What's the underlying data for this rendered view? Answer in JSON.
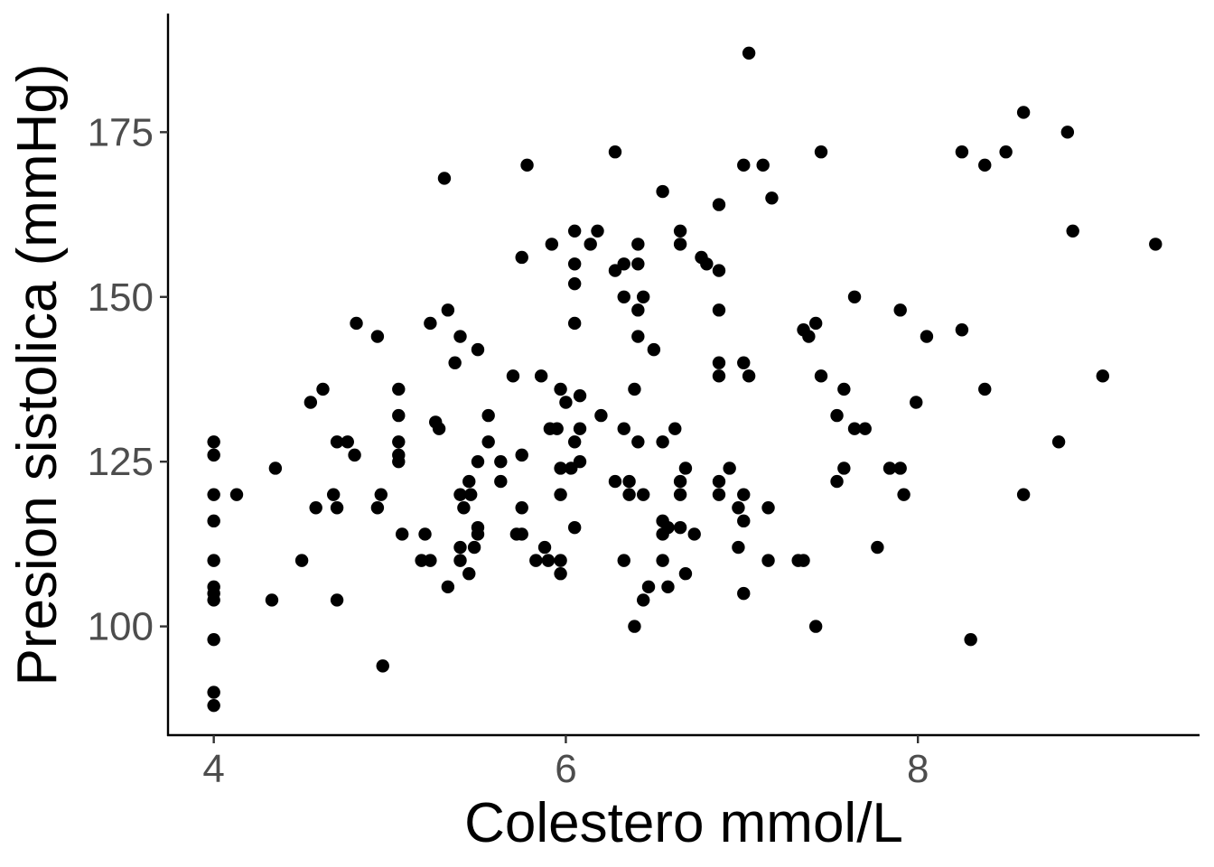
{
  "chart_data": {
    "type": "scatter",
    "title": "",
    "xlabel": "Colestero mmol/L",
    "ylabel": "Presion sistolica (mmHg)",
    "xlim": [
      3.74,
      9.6
    ],
    "ylim": [
      83.5,
      193
    ],
    "xticks": [
      4,
      6,
      8
    ],
    "yticks": [
      100,
      125,
      150,
      175
    ],
    "grid": false,
    "legend": "none",
    "point_color": "#000000",
    "points": [
      [
        4.0,
        128
      ],
      [
        4.0,
        126
      ],
      [
        4.0,
        120
      ],
      [
        4.0,
        116
      ],
      [
        4.0,
        110
      ],
      [
        4.0,
        106
      ],
      [
        4.0,
        105
      ],
      [
        4.0,
        104
      ],
      [
        4.0,
        98
      ],
      [
        4.0,
        90
      ],
      [
        4.0,
        88
      ],
      [
        4.13,
        120
      ],
      [
        4.35,
        124
      ],
      [
        4.33,
        104
      ],
      [
        4.5,
        110
      ],
      [
        4.55,
        134
      ],
      [
        4.58,
        118
      ],
      [
        4.62,
        136
      ],
      [
        4.68,
        120
      ],
      [
        4.7,
        128
      ],
      [
        4.7,
        118
      ],
      [
        4.7,
        104
      ],
      [
        4.76,
        128
      ],
      [
        4.8,
        126
      ],
      [
        4.81,
        146
      ],
      [
        4.93,
        144
      ],
      [
        4.93,
        118
      ],
      [
        4.95,
        120
      ],
      [
        4.96,
        94
      ],
      [
        5.05,
        136
      ],
      [
        5.05,
        132
      ],
      [
        5.05,
        128
      ],
      [
        5.05,
        126
      ],
      [
        5.05,
        125
      ],
      [
        5.07,
        114
      ],
      [
        5.18,
        110
      ],
      [
        5.2,
        114
      ],
      [
        5.23,
        110
      ],
      [
        5.23,
        146
      ],
      [
        5.26,
        131
      ],
      [
        5.28,
        130
      ],
      [
        5.31,
        168
      ],
      [
        5.33,
        148
      ],
      [
        5.33,
        106
      ],
      [
        5.37,
        140
      ],
      [
        5.4,
        144
      ],
      [
        5.4,
        120
      ],
      [
        5.4,
        112
      ],
      [
        5.4,
        110
      ],
      [
        5.42,
        118
      ],
      [
        5.45,
        122
      ],
      [
        5.45,
        108
      ],
      [
        5.46,
        120
      ],
      [
        5.48,
        112
      ],
      [
        5.5,
        142
      ],
      [
        5.5,
        125
      ],
      [
        5.5,
        115
      ],
      [
        5.5,
        114
      ],
      [
        5.56,
        132
      ],
      [
        5.56,
        128
      ],
      [
        5.63,
        125
      ],
      [
        5.63,
        122
      ],
      [
        5.7,
        138
      ],
      [
        5.72,
        114
      ],
      [
        5.75,
        114
      ],
      [
        5.75,
        118
      ],
      [
        5.75,
        126
      ],
      [
        5.75,
        156
      ],
      [
        5.78,
        170
      ],
      [
        5.83,
        110
      ],
      [
        5.86,
        138
      ],
      [
        5.88,
        112
      ],
      [
        5.9,
        110
      ],
      [
        5.91,
        130
      ],
      [
        5.92,
        158
      ],
      [
        5.95,
        130
      ],
      [
        5.97,
        136
      ],
      [
        5.97,
        124
      ],
      [
        5.97,
        120
      ],
      [
        5.97,
        110
      ],
      [
        5.97,
        108
      ],
      [
        6.0,
        134
      ],
      [
        6.03,
        124
      ],
      [
        6.05,
        160
      ],
      [
        6.05,
        155
      ],
      [
        6.05,
        152
      ],
      [
        6.05,
        146
      ],
      [
        6.05,
        128
      ],
      [
        6.05,
        115
      ],
      [
        6.08,
        135
      ],
      [
        6.08,
        130
      ],
      [
        6.08,
        125
      ],
      [
        6.14,
        158
      ],
      [
        6.18,
        160
      ],
      [
        6.2,
        132
      ],
      [
        6.28,
        172
      ],
      [
        6.28,
        154
      ],
      [
        6.28,
        122
      ],
      [
        6.33,
        155
      ],
      [
        6.33,
        150
      ],
      [
        6.33,
        130
      ],
      [
        6.33,
        110
      ],
      [
        6.36,
        122
      ],
      [
        6.36,
        120
      ],
      [
        6.39,
        136
      ],
      [
        6.39,
        100
      ],
      [
        6.41,
        158
      ],
      [
        6.41,
        155
      ],
      [
        6.41,
        148
      ],
      [
        6.41,
        144
      ],
      [
        6.41,
        128
      ],
      [
        6.44,
        150
      ],
      [
        6.44,
        120
      ],
      [
        6.44,
        104
      ],
      [
        6.47,
        106
      ],
      [
        6.5,
        142
      ],
      [
        6.55,
        166
      ],
      [
        6.55,
        128
      ],
      [
        6.55,
        116
      ],
      [
        6.55,
        114
      ],
      [
        6.55,
        110
      ],
      [
        6.58,
        115
      ],
      [
        6.58,
        106
      ],
      [
        6.62,
        130
      ],
      [
        6.65,
        160
      ],
      [
        6.65,
        158
      ],
      [
        6.65,
        122
      ],
      [
        6.65,
        120
      ],
      [
        6.65,
        115
      ],
      [
        6.68,
        124
      ],
      [
        6.68,
        108
      ],
      [
        6.73,
        114
      ],
      [
        6.77,
        156
      ],
      [
        6.8,
        155
      ],
      [
        6.87,
        164
      ],
      [
        6.87,
        154
      ],
      [
        6.87,
        148
      ],
      [
        6.87,
        140
      ],
      [
        6.87,
        138
      ],
      [
        6.87,
        122
      ],
      [
        6.87,
        120
      ],
      [
        6.93,
        124
      ],
      [
        6.98,
        118
      ],
      [
        6.98,
        112
      ],
      [
        7.01,
        170
      ],
      [
        7.01,
        140
      ],
      [
        7.01,
        120
      ],
      [
        7.01,
        116
      ],
      [
        7.01,
        105
      ],
      [
        7.04,
        187
      ],
      [
        7.04,
        138
      ],
      [
        7.12,
        170
      ],
      [
        7.15,
        118
      ],
      [
        7.15,
        110
      ],
      [
        7.17,
        165
      ],
      [
        7.32,
        110
      ],
      [
        7.35,
        110
      ],
      [
        7.35,
        145
      ],
      [
        7.38,
        144
      ],
      [
        7.42,
        146
      ],
      [
        7.42,
        100
      ],
      [
        7.45,
        172
      ],
      [
        7.45,
        138
      ],
      [
        7.54,
        132
      ],
      [
        7.54,
        122
      ],
      [
        7.58,
        136
      ],
      [
        7.58,
        124
      ],
      [
        7.64,
        150
      ],
      [
        7.64,
        130
      ],
      [
        7.7,
        130
      ],
      [
        7.77,
        112
      ],
      [
        7.84,
        124
      ],
      [
        7.9,
        148
      ],
      [
        7.9,
        124
      ],
      [
        7.92,
        120
      ],
      [
        7.99,
        134
      ],
      [
        8.05,
        144
      ],
      [
        8.25,
        172
      ],
      [
        8.25,
        145
      ],
      [
        8.3,
        98
      ],
      [
        8.38,
        170
      ],
      [
        8.38,
        136
      ],
      [
        8.5,
        172
      ],
      [
        8.6,
        178
      ],
      [
        8.6,
        120
      ],
      [
        8.8,
        128
      ],
      [
        8.85,
        175
      ],
      [
        8.88,
        160
      ],
      [
        9.05,
        138
      ],
      [
        9.35,
        158
      ]
    ]
  }
}
